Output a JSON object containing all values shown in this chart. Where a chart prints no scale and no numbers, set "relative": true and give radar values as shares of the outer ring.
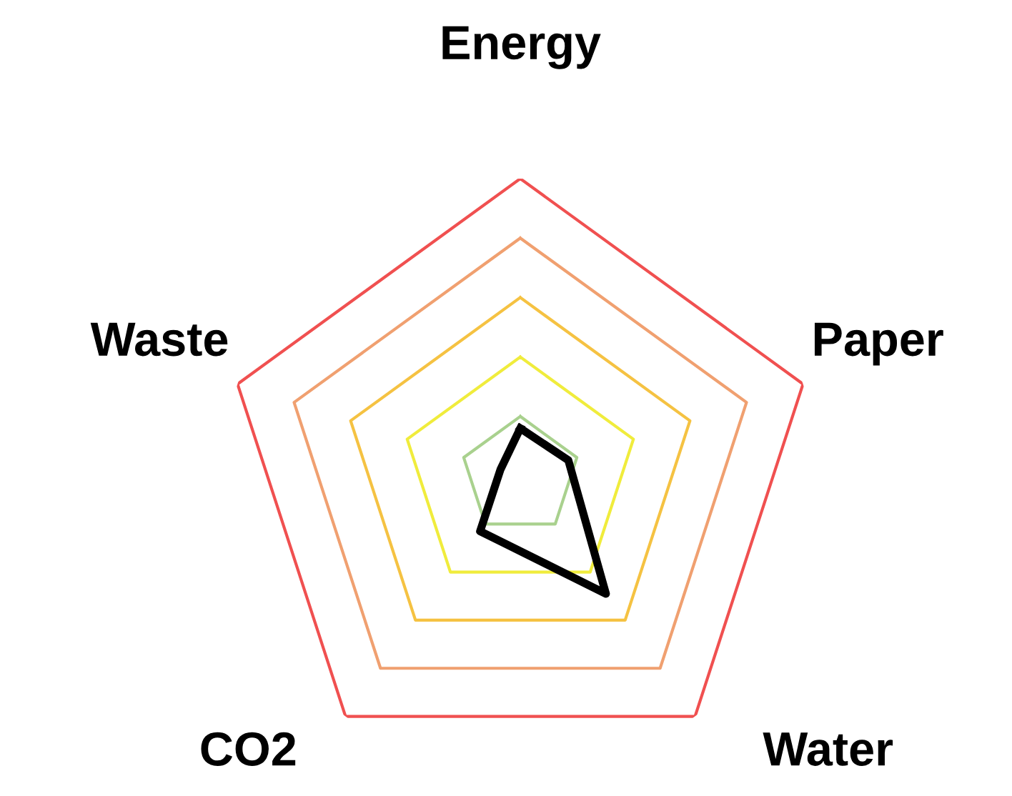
{
  "chart_data": {
    "type": "radar",
    "categories": [
      "Energy",
      "Paper",
      "Water",
      "CO2",
      "Waste"
    ],
    "relative": true,
    "grid": true,
    "series": [
      {
        "color": "#000000",
        "values": [
          0.16,
          0.17,
          0.49,
          0.23,
          0.07
        ]
      }
    ]
  }
}
